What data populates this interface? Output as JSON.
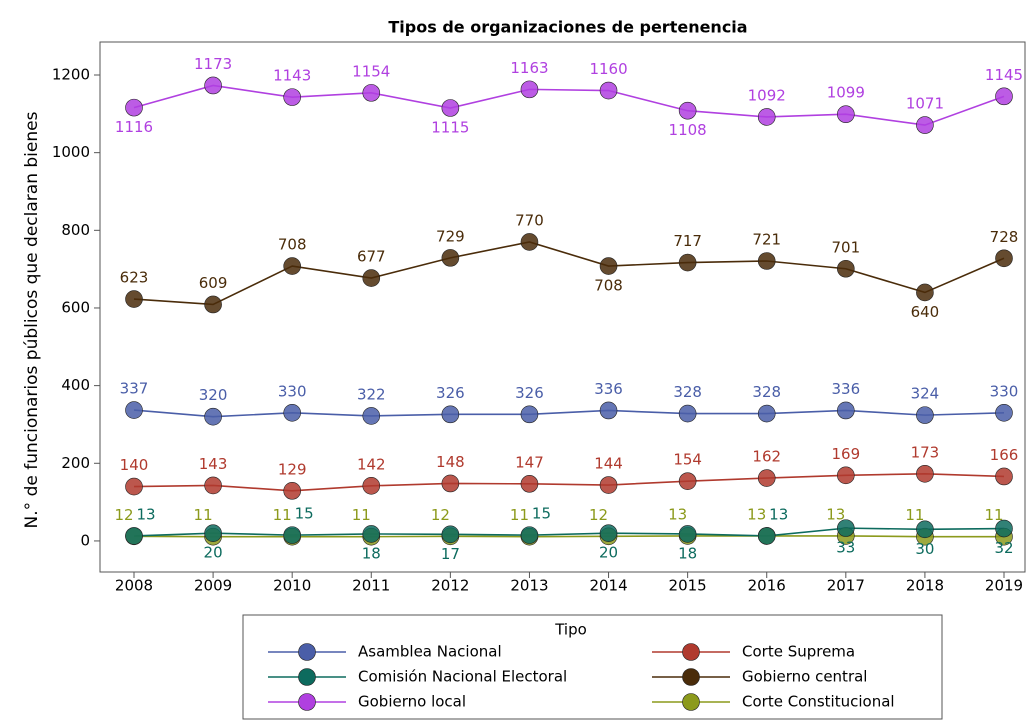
{
  "chart_data": {
    "type": "line",
    "title": "Tipos de organizaciones de pertenencia",
    "y_label": "N.° de funcionarios públicos que declaran bienes",
    "categories": [
      "2008",
      "2009",
      "2010",
      "2011",
      "2012",
      "2013",
      "2014",
      "2015",
      "2016",
      "2017",
      "2018",
      "2019"
    ],
    "ylim": [
      -80,
      1285
    ],
    "yticks": [
      0,
      200,
      400,
      600,
      800,
      1000,
      1200
    ],
    "legend_title": "Tipo",
    "legend": "bottom",
    "series": [
      {
        "name": "Asamblea Nacional",
        "color": "#4a5ea8",
        "values": [
          337,
          320,
          330,
          322,
          326,
          326,
          336,
          328,
          328,
          336,
          324,
          330
        ]
      },
      {
        "name": "Corte Suprema",
        "color": "#b03a2e",
        "values": [
          140,
          143,
          129,
          142,
          148,
          147,
          144,
          154,
          162,
          169,
          173,
          166
        ]
      },
      {
        "name": "Comisión Nacional Electoral",
        "color": "#0d6b5e",
        "values": [
          13,
          20,
          15,
          18,
          17,
          15,
          20,
          18,
          13,
          33,
          30,
          32
        ]
      },
      {
        "name": "Gobierno central",
        "color": "#4a2c0a",
        "values": [
          623,
          609,
          708,
          677,
          729,
          770,
          708,
          717,
          721,
          701,
          640,
          728
        ]
      },
      {
        "name": "Gobierno local",
        "color": "#b040e0",
        "values": [
          1116,
          1173,
          1143,
          1154,
          1115,
          1163,
          1160,
          1108,
          1092,
          1099,
          1071,
          1145
        ]
      },
      {
        "name": "Corte Constitucional",
        "color": "#8c9a1c",
        "values": [
          12,
          11,
          11,
          11,
          12,
          11,
          12,
          13,
          13,
          13,
          11,
          11
        ]
      }
    ]
  }
}
